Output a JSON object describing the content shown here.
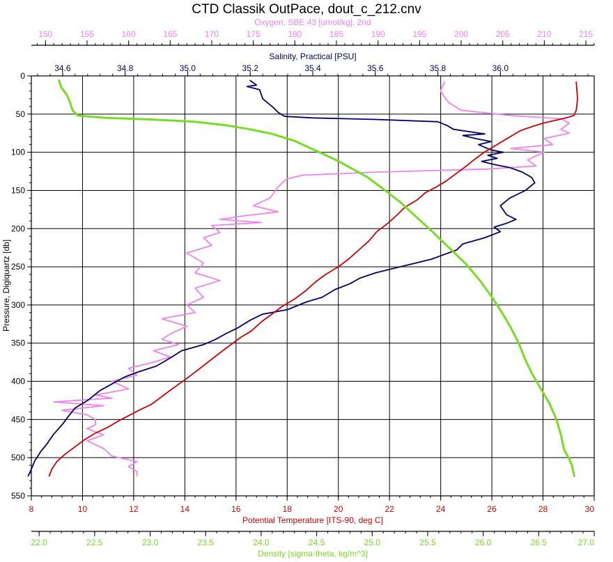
{
  "chart_data": {
    "type": "line",
    "title": "CTD Classik OutPace, dout_c_212.cnv",
    "y_axis": {
      "label": "Pressure, Digiquartz [db]",
      "range": [
        0,
        550
      ],
      "inverted": true,
      "ticks": [
        0,
        50,
        100,
        150,
        200,
        250,
        300,
        350,
        400,
        450,
        500,
        550
      ],
      "tick_labels": [
        "0",
        "50",
        "100",
        "150",
        "200",
        "250",
        "300",
        "350",
        "400",
        "450",
        "500",
        "550"
      ]
    },
    "x_axes": [
      {
        "id": "oxygen",
        "position": "top-outer",
        "color": "#ee82ee",
        "label": "Oxygen, SBE 43 [umol/kg], 2nd",
        "range": [
          148.3,
          216.0
        ],
        "ticks": [
          150,
          155,
          160,
          165,
          170,
          175,
          180,
          185,
          190,
          195,
          200,
          205,
          210,
          215
        ],
        "tick_labels": [
          "150",
          "155",
          "160",
          "165",
          "170",
          "175",
          "180",
          "185",
          "190",
          "195",
          "200",
          "205",
          "210",
          "215"
        ]
      },
      {
        "id": "salinity",
        "position": "top-inner",
        "color": "#000066",
        "label": "Salinity, Practical [PSU]",
        "range": [
          34.5,
          36.3
        ],
        "ticks": [
          34.6,
          34.8,
          35.0,
          35.2,
          35.4,
          35.6,
          35.8,
          36.0
        ],
        "tick_labels": [
          "34.6",
          "34.8",
          "35.0",
          "35.2",
          "35.4",
          "35.6",
          "35.8",
          "36.0"
        ]
      },
      {
        "id": "temperature",
        "position": "bottom-inner",
        "color": "#cc0000",
        "label": "Potential Temperature [ITS-90, deg C]",
        "range": [
          8,
          30
        ],
        "ticks": [
          8,
          10,
          12,
          14,
          16,
          18,
          20,
          22,
          24,
          26,
          28,
          30
        ],
        "tick_labels": [
          "8",
          "10",
          "12",
          "14",
          "16",
          "18",
          "20",
          "22",
          "24",
          "26",
          "28",
          "30"
        ]
      },
      {
        "id": "density",
        "position": "bottom-outer",
        "color": "#77dd22",
        "label": "Density [sigma-theta, kg/m^3]",
        "range": [
          21.93,
          27.0
        ],
        "ticks": [
          22.0,
          22.5,
          23.0,
          23.5,
          24.0,
          24.5,
          25.0,
          25.5,
          26.0,
          26.5,
          27.0
        ],
        "tick_labels": [
          "22.0",
          "22.5",
          "23.0",
          "23.5",
          "24.0",
          "24.5",
          "25.0",
          "25.5",
          "26.0",
          "26.5",
          "27.0"
        ]
      }
    ],
    "grid": true,
    "series": [
      {
        "name": "Oxygen, SBE 43 [umol/kg], 2nd",
        "axis": "oxygen",
        "color": "#ee82ee",
        "points": [
          [
            198,
            8
          ],
          [
            197.5,
            20
          ],
          [
            198.5,
            35
          ],
          [
            200,
            45
          ],
          [
            206,
            52
          ],
          [
            212,
            56
          ],
          [
            213,
            62
          ],
          [
            212,
            70
          ],
          [
            213,
            75
          ],
          [
            210,
            82
          ],
          [
            211,
            90
          ],
          [
            206,
            95
          ],
          [
            210,
            100
          ],
          [
            208,
            110
          ],
          [
            209,
            118
          ],
          [
            203,
            122
          ],
          [
            190,
            126
          ],
          [
            181,
            130
          ],
          [
            179,
            135
          ],
          [
            178,
            145
          ],
          [
            177,
            160
          ],
          [
            175,
            170
          ],
          [
            178,
            178
          ],
          [
            174,
            183
          ],
          [
            171,
            188
          ],
          [
            176,
            192
          ],
          [
            170,
            196
          ],
          [
            171,
            205
          ],
          [
            169,
            212
          ],
          [
            170,
            222
          ],
          [
            167,
            232
          ],
          [
            169,
            245
          ],
          [
            168,
            258
          ],
          [
            171,
            268
          ],
          [
            168,
            278
          ],
          [
            169,
            290
          ],
          [
            167,
            300
          ],
          [
            168,
            310
          ],
          [
            164,
            318
          ],
          [
            167,
            328
          ],
          [
            165,
            338
          ],
          [
            164,
            345
          ],
          [
            166,
            352
          ],
          [
            163,
            360
          ],
          [
            165,
            368
          ],
          [
            163,
            375
          ],
          [
            160,
            383
          ],
          [
            161,
            392
          ],
          [
            158,
            400
          ],
          [
            160,
            410
          ],
          [
            156,
            418
          ],
          [
            158,
            422
          ],
          [
            151,
            427
          ],
          [
            157,
            432
          ],
          [
            152,
            438
          ],
          [
            155,
            444
          ],
          [
            156,
            450
          ],
          [
            156,
            457
          ],
          [
            155,
            462
          ],
          [
            157,
            470
          ],
          [
            155,
            478
          ],
          [
            157,
            488
          ],
          [
            158,
            498
          ],
          [
            161,
            505
          ],
          [
            160,
            512
          ],
          [
            161,
            518
          ],
          [
            161,
            524
          ]
        ]
      },
      {
        "name": "Salinity, Practical [PSU]",
        "axis": "salinity",
        "color": "#000066",
        "points": [
          [
            35.2,
            6
          ],
          [
            35.22,
            12
          ],
          [
            35.19,
            14
          ],
          [
            35.23,
            18
          ],
          [
            35.24,
            30
          ],
          [
            35.27,
            40
          ],
          [
            35.29,
            48
          ],
          [
            35.31,
            53
          ],
          [
            35.4,
            55
          ],
          [
            35.6,
            57
          ],
          [
            35.8,
            60
          ],
          [
            35.83,
            65
          ],
          [
            35.85,
            70
          ],
          [
            35.9,
            73
          ],
          [
            35.95,
            76
          ],
          [
            35.88,
            78
          ],
          [
            35.92,
            82
          ],
          [
            35.97,
            86
          ],
          [
            35.93,
            90
          ],
          [
            35.97,
            97
          ],
          [
            36.01,
            100
          ],
          [
            35.96,
            104
          ],
          [
            35.99,
            108
          ],
          [
            35.94,
            112
          ],
          [
            35.98,
            116
          ],
          [
            36.03,
            120
          ],
          [
            36.07,
            126
          ],
          [
            36.1,
            133
          ],
          [
            36.11,
            140
          ],
          [
            36.08,
            150
          ],
          [
            36.03,
            160
          ],
          [
            36.0,
            170
          ],
          [
            36.02,
            182
          ],
          [
            36.05,
            188
          ],
          [
            36.02,
            193
          ],
          [
            35.98,
            198
          ],
          [
            36.0,
            204
          ],
          [
            35.95,
            212
          ],
          [
            35.88,
            220
          ],
          [
            35.86,
            228
          ],
          [
            35.82,
            234
          ],
          [
            35.78,
            240
          ],
          [
            35.72,
            246
          ],
          [
            35.66,
            252
          ],
          [
            35.6,
            258
          ],
          [
            35.55,
            265
          ],
          [
            35.52,
            272
          ],
          [
            35.47,
            280
          ],
          [
            35.43,
            290
          ],
          [
            35.38,
            296
          ],
          [
            35.32,
            306
          ],
          [
            35.24,
            312
          ],
          [
            35.2,
            320
          ],
          [
            35.16,
            330
          ],
          [
            35.12,
            338
          ],
          [
            35.09,
            345
          ],
          [
            35.05,
            352
          ],
          [
            34.98,
            360
          ],
          [
            34.95,
            368
          ],
          [
            34.9,
            380
          ],
          [
            34.84,
            388
          ],
          [
            34.8,
            394
          ],
          [
            34.76,
            403
          ],
          [
            34.72,
            412
          ],
          [
            34.68,
            425
          ],
          [
            34.64,
            435
          ],
          [
            34.62,
            445
          ],
          [
            34.6,
            456
          ],
          [
            34.57,
            470
          ],
          [
            34.55,
            482
          ],
          [
            34.53,
            492
          ],
          [
            34.51,
            505
          ],
          [
            34.5,
            515
          ],
          [
            34.49,
            524
          ]
        ]
      },
      {
        "name": "Potential Temperature [ITS-90, deg C]",
        "axis": "temperature",
        "color": "#cc0000",
        "points": [
          [
            29.3,
            8
          ],
          [
            29.35,
            30
          ],
          [
            29.3,
            45
          ],
          [
            29.2,
            52
          ],
          [
            28.9,
            55
          ],
          [
            28.5,
            58
          ],
          [
            28.0,
            62
          ],
          [
            27.6,
            66
          ],
          [
            27.1,
            72
          ],
          [
            26.8,
            78
          ],
          [
            26.4,
            86
          ],
          [
            26.1,
            92
          ],
          [
            25.7,
            100
          ],
          [
            25.3,
            110
          ],
          [
            25.0,
            118
          ],
          [
            24.6,
            128
          ],
          [
            24.2,
            138
          ],
          [
            23.8,
            146
          ],
          [
            23.4,
            153
          ],
          [
            23.1,
            162
          ],
          [
            22.6,
            172
          ],
          [
            22.3,
            182
          ],
          [
            21.9,
            194
          ],
          [
            21.5,
            204
          ],
          [
            21.2,
            216
          ],
          [
            20.8,
            228
          ],
          [
            20.4,
            240
          ],
          [
            20.0,
            250
          ],
          [
            19.5,
            260
          ],
          [
            19.1,
            270
          ],
          [
            18.7,
            282
          ],
          [
            18.3,
            292
          ],
          [
            17.8,
            302
          ],
          [
            17.4,
            312
          ],
          [
            17.0,
            322
          ],
          [
            16.6,
            334
          ],
          [
            16.2,
            342
          ],
          [
            15.8,
            352
          ],
          [
            15.4,
            362
          ],
          [
            14.9,
            375
          ],
          [
            14.4,
            388
          ],
          [
            14.0,
            398
          ],
          [
            13.5,
            410
          ],
          [
            13.1,
            420
          ],
          [
            12.7,
            430
          ],
          [
            12.2,
            438
          ],
          [
            11.8,
            445
          ],
          [
            11.4,
            452
          ],
          [
            11.0,
            460
          ],
          [
            10.5,
            468
          ],
          [
            10.1,
            476
          ],
          [
            9.7,
            486
          ],
          [
            9.3,
            496
          ],
          [
            9.0,
            505
          ],
          [
            8.8,
            515
          ],
          [
            8.7,
            524
          ]
        ]
      },
      {
        "name": "Density [sigma-theta, kg/m^3]",
        "axis": "density",
        "color": "#77dd22",
        "points": [
          [
            22.18,
            6
          ],
          [
            22.2,
            15
          ],
          [
            22.25,
            25
          ],
          [
            22.28,
            35
          ],
          [
            22.3,
            45
          ],
          [
            22.35,
            52
          ],
          [
            22.6,
            55
          ],
          [
            23.0,
            57
          ],
          [
            23.4,
            60
          ],
          [
            23.7,
            65
          ],
          [
            23.9,
            70
          ],
          [
            24.1,
            76
          ],
          [
            24.3,
            85
          ],
          [
            24.45,
            95
          ],
          [
            24.6,
            105
          ],
          [
            24.7,
            112
          ],
          [
            24.8,
            120
          ],
          [
            24.95,
            132
          ],
          [
            25.1,
            148
          ],
          [
            25.25,
            165
          ],
          [
            25.4,
            185
          ],
          [
            25.55,
            205
          ],
          [
            25.7,
            226
          ],
          [
            25.85,
            247
          ],
          [
            25.97,
            268
          ],
          [
            26.08,
            290
          ],
          [
            26.17,
            310
          ],
          [
            26.25,
            330
          ],
          [
            26.32,
            350
          ],
          [
            26.38,
            372
          ],
          [
            26.44,
            390
          ],
          [
            26.52,
            410
          ],
          [
            26.6,
            430
          ],
          [
            26.66,
            450
          ],
          [
            26.7,
            470
          ],
          [
            26.73,
            490
          ],
          [
            26.77,
            500
          ],
          [
            26.8,
            510
          ],
          [
            26.82,
            524
          ]
        ]
      }
    ]
  }
}
